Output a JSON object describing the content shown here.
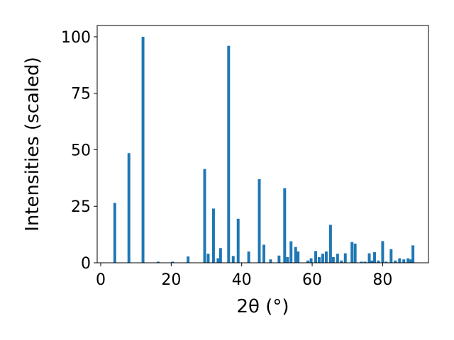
{
  "chart_data": {
    "type": "bar",
    "xlabel": "2θ (°)",
    "ylabel": "Intensities (scaled)",
    "xlim": [
      -1,
      93
    ],
    "ylim": [
      0,
      105
    ],
    "xticks": [
      0,
      20,
      40,
      60,
      80
    ],
    "yticks": [
      0,
      25,
      50,
      75,
      100
    ],
    "grid": false,
    "bar_width": 0.8,
    "color": "#1f77b4",
    "x": [
      4,
      8,
      12,
      16.3,
      20.4,
      24.8,
      29.5,
      30.5,
      32.0,
      33.3,
      34.0,
      36.3,
      37.6,
      39.0,
      42.0,
      45.0,
      46.3,
      48.2,
      50.6,
      52.2,
      53.0,
      54.0,
      55.3,
      56.0,
      58.8,
      59.7,
      61.0,
      62.0,
      63.0,
      64.0,
      65.2,
      66.0,
      67.2,
      68.3,
      69.4,
      71.3,
      72.2,
      74.0,
      75.0,
      76.2,
      77.0,
      77.7,
      78.8,
      80.0,
      81.0,
      82.4,
      83.6,
      84.8,
      86.0,
      87.2,
      88.0,
      88.6
    ],
    "values": [
      26.5,
      48.5,
      100,
      0.5,
      0.5,
      2.8,
      41.5,
      4,
      24,
      2,
      6.5,
      96,
      3,
      19.5,
      5,
      37,
      8,
      1.5,
      3.2,
      33,
      2.5,
      9.5,
      7,
      5,
      1,
      2,
      5.2,
      2.5,
      4,
      5,
      16.8,
      2.5,
      4,
      1,
      4.2,
      9.2,
      8.5,
      0.5,
      0.5,
      4.2,
      1,
      4.7,
      1,
      9.6,
      0.5,
      6,
      1,
      2,
      1.5,
      2,
      1.5,
      7.7
    ]
  }
}
